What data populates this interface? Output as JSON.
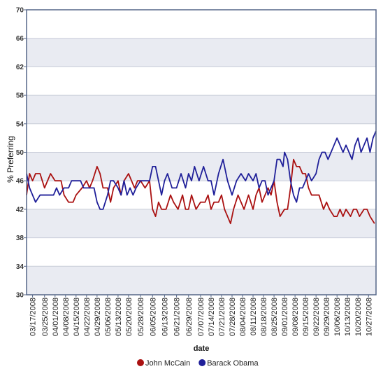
{
  "chart_data": {
    "type": "line",
    "ylabel": "% Preferring",
    "xlabel": "date",
    "ylim": [
      30,
      70
    ],
    "yticks": [
      30,
      34,
      38,
      42,
      46,
      50,
      54,
      58,
      62,
      66,
      70
    ],
    "x_start": "2008-03-13",
    "x_end": "2008-11-01",
    "x_tick_labels": [
      "03/17/2008",
      "03/25/2008",
      "04/01/2008",
      "04/08/2008",
      "04/15/2008",
      "04/22/2008",
      "04/29/2008",
      "05/06/2008",
      "05/13/2008",
      "05/20/2008",
      "05/28/2008",
      "06/05/2008",
      "06/13/2008",
      "06/21/2008",
      "06/29/2008",
      "07/07/2008",
      "07/14/2008",
      "07/21/2008",
      "07/28/2008",
      "08/04/2008",
      "08/11/2008",
      "08/18/2008",
      "08/25/2008",
      "09/01/2008",
      "09/08/2008",
      "09/15/2008",
      "09/22/2008",
      "09/29/2008",
      "10/06/2008",
      "10/13/2008",
      "10/20/2008",
      "10/27/2008"
    ],
    "grid": true,
    "legend_position": "bottom",
    "series": [
      {
        "name": "John McCain",
        "color": "#aa1111",
        "points": [
          [
            "2008-03-13",
            44
          ],
          [
            "2008-03-15",
            47
          ],
          [
            "2008-03-17",
            46
          ],
          [
            "2008-03-19",
            47
          ],
          [
            "2008-03-22",
            47
          ],
          [
            "2008-03-25",
            45
          ],
          [
            "2008-03-27",
            46
          ],
          [
            "2008-03-29",
            47
          ],
          [
            "2008-04-01",
            46
          ],
          [
            "2008-04-05",
            46
          ],
          [
            "2008-04-07",
            44
          ],
          [
            "2008-04-10",
            43
          ],
          [
            "2008-04-13",
            43
          ],
          [
            "2008-04-15",
            44
          ],
          [
            "2008-04-19",
            45
          ],
          [
            "2008-04-22",
            46
          ],
          [
            "2008-04-24",
            45
          ],
          [
            "2008-04-26",
            46
          ],
          [
            "2008-04-29",
            48
          ],
          [
            "2008-05-01",
            47
          ],
          [
            "2008-05-03",
            45
          ],
          [
            "2008-05-06",
            45
          ],
          [
            "2008-05-08",
            43
          ],
          [
            "2008-05-10",
            45
          ],
          [
            "2008-05-13",
            46
          ],
          [
            "2008-05-15",
            44
          ],
          [
            "2008-05-17",
            46
          ],
          [
            "2008-05-20",
            47
          ],
          [
            "2008-05-22",
            46
          ],
          [
            "2008-05-24",
            45
          ],
          [
            "2008-05-26",
            46
          ],
          [
            "2008-05-28",
            46
          ],
          [
            "2008-05-31",
            45
          ],
          [
            "2008-06-03",
            46
          ],
          [
            "2008-06-05",
            42
          ],
          [
            "2008-06-07",
            41
          ],
          [
            "2008-06-09",
            43
          ],
          [
            "2008-06-11",
            42
          ],
          [
            "2008-06-14",
            42
          ],
          [
            "2008-06-17",
            44
          ],
          [
            "2008-06-19",
            43
          ],
          [
            "2008-06-22",
            42
          ],
          [
            "2008-06-25",
            44
          ],
          [
            "2008-06-27",
            42
          ],
          [
            "2008-06-29",
            42
          ],
          [
            "2008-07-01",
            44
          ],
          [
            "2008-07-04",
            42
          ],
          [
            "2008-07-07",
            43
          ],
          [
            "2008-07-10",
            43
          ],
          [
            "2008-07-12",
            44
          ],
          [
            "2008-07-14",
            42
          ],
          [
            "2008-07-16",
            43
          ],
          [
            "2008-07-19",
            43
          ],
          [
            "2008-07-21",
            44
          ],
          [
            "2008-07-23",
            42
          ],
          [
            "2008-07-25",
            41
          ],
          [
            "2008-07-27",
            40
          ],
          [
            "2008-07-29",
            42
          ],
          [
            "2008-08-01",
            44
          ],
          [
            "2008-08-03",
            43
          ],
          [
            "2008-08-05",
            42
          ],
          [
            "2008-08-08",
            44
          ],
          [
            "2008-08-11",
            42
          ],
          [
            "2008-08-13",
            44
          ],
          [
            "2008-08-15",
            45
          ],
          [
            "2008-08-17",
            43
          ],
          [
            "2008-08-19",
            44
          ],
          [
            "2008-08-21",
            45
          ],
          [
            "2008-08-23",
            44
          ],
          [
            "2008-08-25",
            46
          ],
          [
            "2008-08-27",
            43
          ],
          [
            "2008-08-29",
            41
          ],
          [
            "2008-09-01",
            42
          ],
          [
            "2008-09-03",
            42
          ],
          [
            "2008-09-05",
            45
          ],
          [
            "2008-09-07",
            49
          ],
          [
            "2008-09-09",
            48
          ],
          [
            "2008-09-11",
            48
          ],
          [
            "2008-09-13",
            47
          ],
          [
            "2008-09-15",
            47
          ],
          [
            "2008-09-17",
            45
          ],
          [
            "2008-09-19",
            44
          ],
          [
            "2008-09-22",
            44
          ],
          [
            "2008-09-24",
            44
          ],
          [
            "2008-09-27",
            42
          ],
          [
            "2008-09-29",
            43
          ],
          [
            "2008-10-01",
            42
          ],
          [
            "2008-10-04",
            41
          ],
          [
            "2008-10-06",
            41
          ],
          [
            "2008-10-08",
            42
          ],
          [
            "2008-10-10",
            41
          ],
          [
            "2008-10-12",
            42
          ],
          [
            "2008-10-15",
            41
          ],
          [
            "2008-10-17",
            42
          ],
          [
            "2008-10-19",
            42
          ],
          [
            "2008-10-21",
            41
          ],
          [
            "2008-10-24",
            42
          ],
          [
            "2008-10-26",
            42
          ],
          [
            "2008-10-28",
            41
          ],
          [
            "2008-10-31",
            40
          ]
        ]
      },
      {
        "name": "Barack Obama",
        "color": "#1f1f99",
        "points": [
          [
            "2008-03-13",
            47
          ],
          [
            "2008-03-15",
            45
          ],
          [
            "2008-03-17",
            44
          ],
          [
            "2008-03-19",
            43
          ],
          [
            "2008-03-22",
            44
          ],
          [
            "2008-03-25",
            44
          ],
          [
            "2008-03-28",
            44
          ],
          [
            "2008-03-31",
            44
          ],
          [
            "2008-04-02",
            45
          ],
          [
            "2008-04-04",
            44
          ],
          [
            "2008-04-07",
            45
          ],
          [
            "2008-04-10",
            45
          ],
          [
            "2008-04-12",
            46
          ],
          [
            "2008-04-15",
            46
          ],
          [
            "2008-04-18",
            46
          ],
          [
            "2008-04-20",
            45
          ],
          [
            "2008-04-22",
            45
          ],
          [
            "2008-04-25",
            45
          ],
          [
            "2008-04-27",
            45
          ],
          [
            "2008-04-29",
            43
          ],
          [
            "2008-05-01",
            42
          ],
          [
            "2008-05-03",
            42
          ],
          [
            "2008-05-06",
            44
          ],
          [
            "2008-05-08",
            46
          ],
          [
            "2008-05-10",
            46
          ],
          [
            "2008-05-13",
            45
          ],
          [
            "2008-05-15",
            44
          ],
          [
            "2008-05-17",
            46
          ],
          [
            "2008-05-19",
            44
          ],
          [
            "2008-05-21",
            45
          ],
          [
            "2008-05-23",
            44
          ],
          [
            "2008-05-25",
            45
          ],
          [
            "2008-05-28",
            46
          ],
          [
            "2008-05-31",
            46
          ],
          [
            "2008-06-03",
            46
          ],
          [
            "2008-06-05",
            48
          ],
          [
            "2008-06-07",
            48
          ],
          [
            "2008-06-09",
            46
          ],
          [
            "2008-06-11",
            44
          ],
          [
            "2008-06-13",
            46
          ],
          [
            "2008-06-15",
            47
          ],
          [
            "2008-06-18",
            45
          ],
          [
            "2008-06-21",
            45
          ],
          [
            "2008-06-24",
            47
          ],
          [
            "2008-06-27",
            45
          ],
          [
            "2008-06-29",
            47
          ],
          [
            "2008-07-01",
            46
          ],
          [
            "2008-07-03",
            48
          ],
          [
            "2008-07-06",
            46
          ],
          [
            "2008-07-09",
            48
          ],
          [
            "2008-07-12",
            46
          ],
          [
            "2008-07-14",
            46
          ],
          [
            "2008-07-16",
            44
          ],
          [
            "2008-07-19",
            47
          ],
          [
            "2008-07-22",
            49
          ],
          [
            "2008-07-25",
            46
          ],
          [
            "2008-07-28",
            44
          ],
          [
            "2008-07-31",
            46
          ],
          [
            "2008-08-03",
            47
          ],
          [
            "2008-08-06",
            46
          ],
          [
            "2008-08-08",
            47
          ],
          [
            "2008-08-11",
            46
          ],
          [
            "2008-08-13",
            47
          ],
          [
            "2008-08-15",
            45
          ],
          [
            "2008-08-17",
            46
          ],
          [
            "2008-08-19",
            46
          ],
          [
            "2008-08-21",
            44
          ],
          [
            "2008-08-23",
            45
          ],
          [
            "2008-08-25",
            46
          ],
          [
            "2008-08-27",
            49
          ],
          [
            "2008-08-29",
            49
          ],
          [
            "2008-08-31",
            48
          ],
          [
            "2008-09-01",
            50
          ],
          [
            "2008-09-03",
            49
          ],
          [
            "2008-09-05",
            46
          ],
          [
            "2008-09-07",
            44
          ],
          [
            "2008-09-09",
            43
          ],
          [
            "2008-09-11",
            45
          ],
          [
            "2008-09-13",
            45
          ],
          [
            "2008-09-15",
            46
          ],
          [
            "2008-09-17",
            47
          ],
          [
            "2008-09-19",
            46
          ],
          [
            "2008-09-22",
            47
          ],
          [
            "2008-09-24",
            49
          ],
          [
            "2008-09-26",
            50
          ],
          [
            "2008-09-28",
            50
          ],
          [
            "2008-09-30",
            49
          ],
          [
            "2008-10-02",
            50
          ],
          [
            "2008-10-04",
            51
          ],
          [
            "2008-10-06",
            52
          ],
          [
            "2008-10-08",
            51
          ],
          [
            "2008-10-10",
            50
          ],
          [
            "2008-10-12",
            51
          ],
          [
            "2008-10-14",
            50
          ],
          [
            "2008-10-16",
            49
          ],
          [
            "2008-10-18",
            51
          ],
          [
            "2008-10-20",
            52
          ],
          [
            "2008-10-22",
            50
          ],
          [
            "2008-10-24",
            51
          ],
          [
            "2008-10-26",
            52
          ],
          [
            "2008-10-28",
            50
          ],
          [
            "2008-10-30",
            52
          ],
          [
            "2008-11-01",
            53
          ]
        ]
      }
    ]
  }
}
